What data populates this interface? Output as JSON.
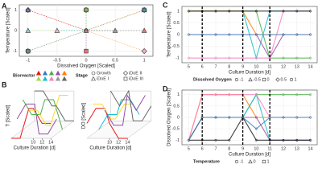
{
  "chart_data": [
    {
      "type": "scatter",
      "panel": "A",
      "xlabel": "Dissolved Oxygen [Scaled]",
      "ylabel": "Temperature [Scaled]",
      "xlim": [
        -1.15,
        1.15
      ],
      "ylim": [
        -1.25,
        1.25
      ],
      "xticks": [
        -1,
        -0.5,
        0,
        0.5,
        1
      ],
      "yticks": [
        -1,
        0,
        1
      ],
      "bioreactor_title": "Bioreactor",
      "bioreactor_colors": [
        "#e41a1c",
        "#377eb8",
        "#4daf4a",
        "#984ea3",
        "#ff7f00",
        "#a6d854",
        "#17becf",
        "#f781bf",
        "#999999",
        "#666666"
      ],
      "stage_title": "Stage",
      "series": [
        {
          "name": "Growth",
          "marker": "circle",
          "x": [
            0
          ],
          "y": [
            0
          ]
        },
        {
          "name": "iDoE II",
          "marker": "diamond",
          "x": [
            -1,
            0,
            1,
            -1,
            1
          ],
          "y": [
            1,
            1,
            1,
            -1,
            -1
          ]
        },
        {
          "name": "iDoE I",
          "marker": "triangle",
          "x": [
            -1,
            -0.5,
            0,
            0.5,
            1,
            -1,
            1
          ],
          "y": [
            0,
            0,
            0,
            0,
            0,
            1,
            1
          ]
        },
        {
          "name": "iDoE III",
          "marker": "square",
          "x": [
            -1,
            0,
            1,
            0
          ],
          "y": [
            -1,
            -1,
            1,
            1
          ]
        }
      ]
    },
    {
      "type": "line3d",
      "panel": "B",
      "xlabel": "Culture Duration [d]",
      "ylabel": "T [Scaled]",
      "xlim": [
        5,
        14
      ],
      "ylim": [
        -1,
        1
      ],
      "xticks": [
        10,
        12,
        14
      ],
      "series": [
        {
          "color": "#e41a1c",
          "values": [
            -1,
            -1,
            1,
            1,
            0,
            0
          ]
        },
        {
          "color": "#984ea3",
          "values": [
            0,
            1,
            1,
            -1,
            -1,
            0
          ]
        },
        {
          "color": "#4daf4a",
          "values": [
            1,
            0,
            0,
            1,
            1,
            -1
          ]
        },
        {
          "color": "#ffd92f",
          "values": [
            0,
            0,
            -1,
            -1,
            1,
            1
          ]
        },
        {
          "color": "#666666",
          "values": [
            1,
            1,
            0,
            0,
            -1,
            -1
          ]
        }
      ],
      "x": [
        5,
        7,
        9,
        10,
        12,
        14
      ]
    },
    {
      "type": "line3d",
      "panel": "",
      "xlabel": "Culture Duration [d]",
      "ylabel": "DO [Scaled]",
      "xlim": [
        5,
        14
      ],
      "ylim": [
        -1,
        1
      ],
      "xticks": [
        10,
        12,
        14
      ],
      "series": [
        {
          "color": "#e41a1c",
          "values": [
            0,
            1,
            1,
            0,
            -1,
            -1
          ]
        },
        {
          "color": "#ffd92f",
          "values": [
            1,
            1,
            0,
            0,
            1,
            1
          ]
        },
        {
          "color": "#17becf",
          "values": [
            -1,
            0,
            0,
            1,
            1,
            0
          ]
        },
        {
          "color": "#984ea3",
          "values": [
            0,
            -1,
            -1,
            1,
            0,
            1
          ]
        },
        {
          "color": "#666666",
          "values": [
            1,
            0,
            1,
            -1,
            -1,
            0
          ]
        }
      ],
      "x": [
        5,
        7,
        9,
        10,
        12,
        14
      ]
    },
    {
      "type": "line",
      "panel": "C",
      "xlabel": "Culture Duration [d]",
      "ylabel": "Temperature [Scaled]",
      "xlim": [
        4.5,
        14.5
      ],
      "ylim": [
        -1.2,
        1.2
      ],
      "xticks": [
        5,
        6,
        7,
        8,
        9,
        10,
        11,
        12,
        13,
        14
      ],
      "yticks": [
        -1,
        -0.5,
        0,
        0.5,
        1
      ],
      "vlines": [
        6,
        9,
        11
      ],
      "x": [
        5,
        6,
        7,
        8,
        9,
        10,
        11,
        12,
        13,
        14
      ],
      "series": [
        {
          "color": "#4daf4a",
          "values": [
            1,
            1,
            1,
            1,
            1,
            1,
            -1,
            -1,
            -1,
            -1
          ]
        },
        {
          "color": "#17becf",
          "values": [
            1,
            1,
            1,
            1,
            1,
            -1,
            1,
            1,
            1,
            1
          ]
        },
        {
          "color": "#ff7f00",
          "values": [
            1,
            1,
            1,
            1,
            1,
            0,
            0,
            0,
            0,
            0
          ]
        },
        {
          "color": "#984ea3",
          "values": [
            0,
            0,
            0,
            0,
            0,
            0,
            -1,
            0,
            0,
            0
          ]
        },
        {
          "color": "#f781bf",
          "values": [
            -1,
            -1,
            -1,
            -1,
            -1,
            -1,
            -1,
            1,
            1,
            1
          ]
        },
        {
          "color": "#377eb8",
          "values": [
            0,
            0,
            0,
            0,
            0,
            0,
            0,
            0,
            0,
            0
          ]
        },
        {
          "color": "#222222",
          "values": [
            1,
            1,
            1,
            1,
            1,
            1,
            1,
            1,
            1,
            1
          ]
        }
      ],
      "legend_title": "Dissolved Oxygen",
      "legend_labels": [
        "-1",
        "-0.5",
        "0",
        "0.5",
        "1"
      ]
    },
    {
      "type": "line",
      "panel": "D",
      "xlabel": "Culture Duration [d]",
      "ylabel": "Dissolved Oxygen [Scaled]",
      "xlim": [
        4.5,
        14.5
      ],
      "ylim": [
        -1.2,
        1.2
      ],
      "xticks": [
        5,
        6,
        7,
        8,
        9,
        10,
        11,
        12,
        13,
        14
      ],
      "yticks": [
        -1,
        -0.5,
        0,
        0.5,
        1
      ],
      "vlines": [
        6,
        9,
        11
      ],
      "x": [
        5,
        6,
        7,
        8,
        9,
        10,
        11,
        12,
        13,
        14
      ],
      "series": [
        {
          "color": "#ff7f00",
          "values": [
            -1,
            1,
            1,
            1,
            1,
            0,
            0,
            0,
            0,
            0
          ]
        },
        {
          "color": "#4daf4a",
          "values": [
            -1,
            0,
            0,
            0,
            0,
            1,
            1,
            1,
            1,
            1
          ]
        },
        {
          "color": "#17becf",
          "values": [
            -1,
            0,
            0,
            0,
            0,
            1,
            -1,
            -1,
            -1,
            -1
          ]
        },
        {
          "color": "#984ea3",
          "values": [
            -1,
            0,
            0,
            0,
            0,
            0,
            -1,
            -1,
            -1,
            -1
          ]
        },
        {
          "color": "#f781bf",
          "values": [
            -1,
            1,
            1,
            1,
            1,
            1,
            0,
            0,
            0,
            0
          ]
        },
        {
          "color": "#222222",
          "values": [
            -1,
            -1,
            -1,
            -1,
            0,
            -1,
            -1,
            -1,
            -1,
            -1
          ]
        },
        {
          "color": "#377eb8",
          "values": [
            -1,
            0,
            0,
            0,
            0,
            -0.5,
            0,
            0,
            0,
            0
          ]
        }
      ],
      "legend_title": "Temperature",
      "legend_labels": [
        "-1",
        "0",
        "1"
      ]
    }
  ]
}
